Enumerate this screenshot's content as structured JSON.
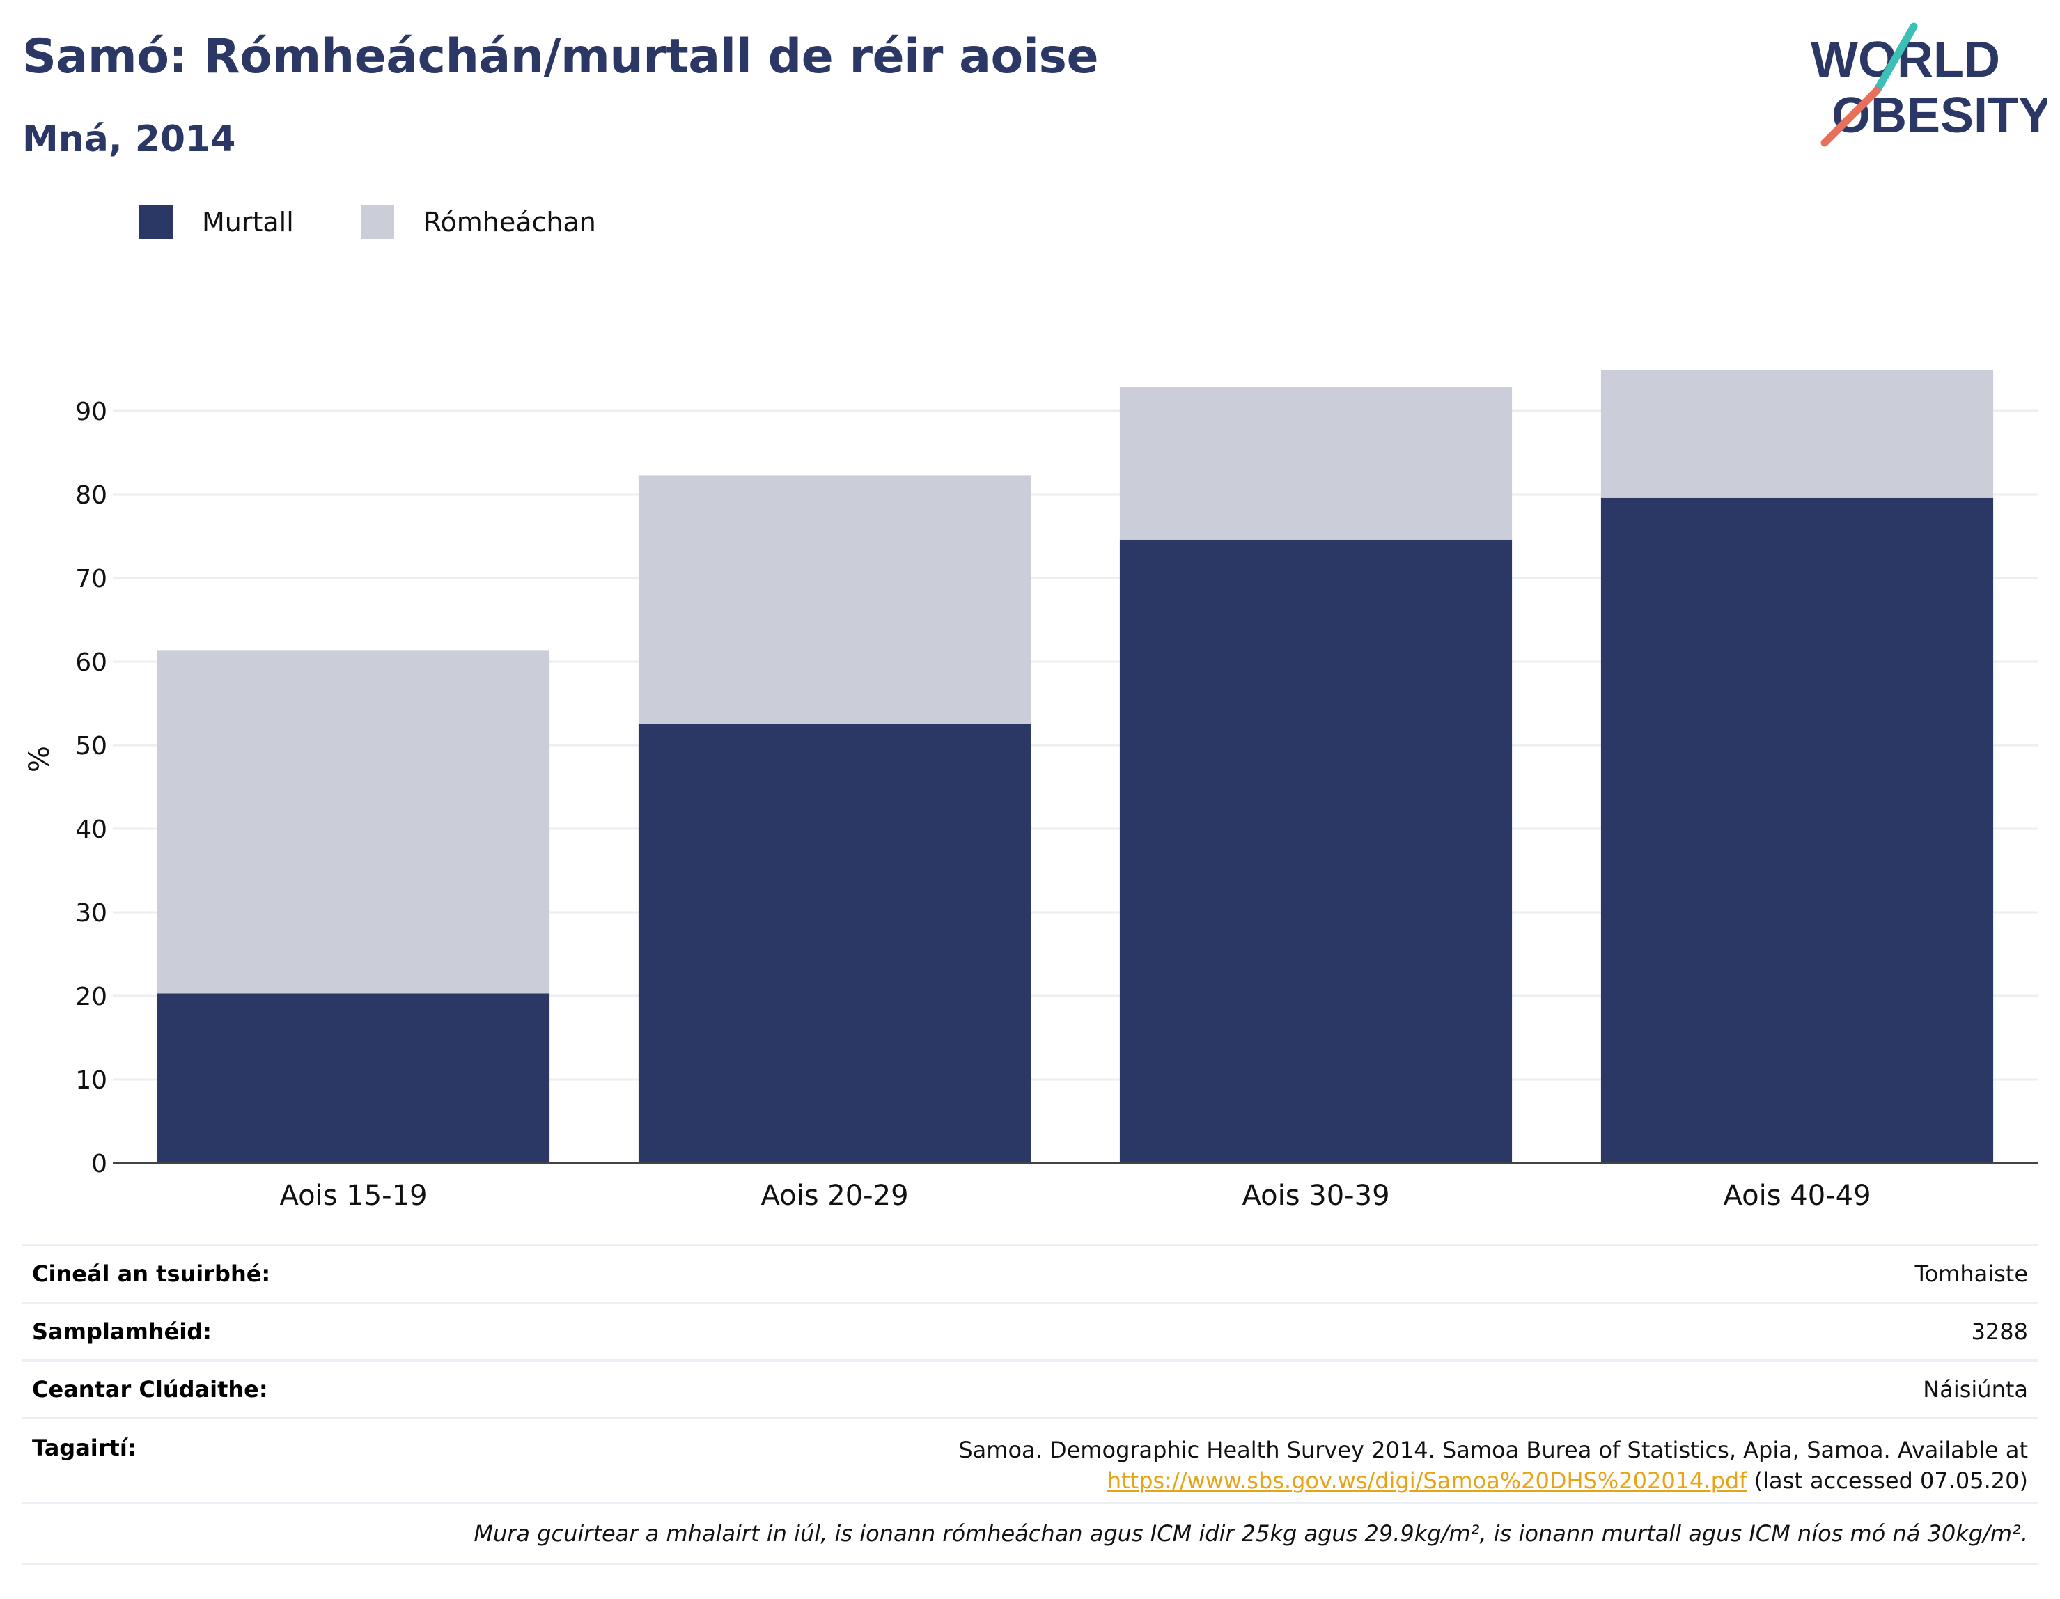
{
  "title": "Samó: Rómheáchán/murtall de réir aoise",
  "subtitle": "Mná, 2014",
  "logo": {
    "line1": "WORLD",
    "line2": "OBESITY",
    "accent_colors": [
      "#3cbfb4",
      "#e8705a"
    ]
  },
  "colors": {
    "obesity": "#2b3764",
    "overweight": "#cbcdd8",
    "title": "#2b3764",
    "link": "#e8a317"
  },
  "chart_data": {
    "type": "bar",
    "stacked": true,
    "categories": [
      "Aois 15-19",
      "Aois 20-29",
      "Aois 30-39",
      "Aois 40-49"
    ],
    "series": [
      {
        "name": "Murtall",
        "values": [
          20.3,
          52.5,
          74.6,
          79.6
        ]
      },
      {
        "name": "Rómheáchan",
        "values": [
          41.0,
          29.8,
          18.3,
          15.3
        ]
      }
    ],
    "xlabel": "",
    "ylabel": "%",
    "ylim": [
      0,
      95
    ],
    "yticks": [
      0,
      10,
      20,
      30,
      40,
      50,
      60,
      70,
      80,
      90
    ],
    "grid": true,
    "legend": "top-left"
  },
  "info": {
    "survey_type_label": "Cineál an tsuirbhé:",
    "survey_type_value": "Tomhaiste",
    "sample_label": "Samplamhéid:",
    "sample_value": "3288",
    "area_label": "Ceantar Clúdaithe:",
    "area_value": "Náisiúnta",
    "refs_label": "Tagairtí:",
    "refs_line1": "Samoa. Demographic Health Survey 2014. Samoa Burea of Statistics, Apia, Samoa. Available at",
    "refs_link": "https://www.sbs.gov.ws/digi/Samoa%20DHS%202014.pdf",
    "refs_tail": " (last accessed 07.05.20)",
    "note": "Mura gcuirtear a mhalairt in iúl, is ionann rómheáchan agus ICM idir 25kg agus 29.9kg/m², is ionann murtall agus ICM níos mó ná 30kg/m²."
  }
}
